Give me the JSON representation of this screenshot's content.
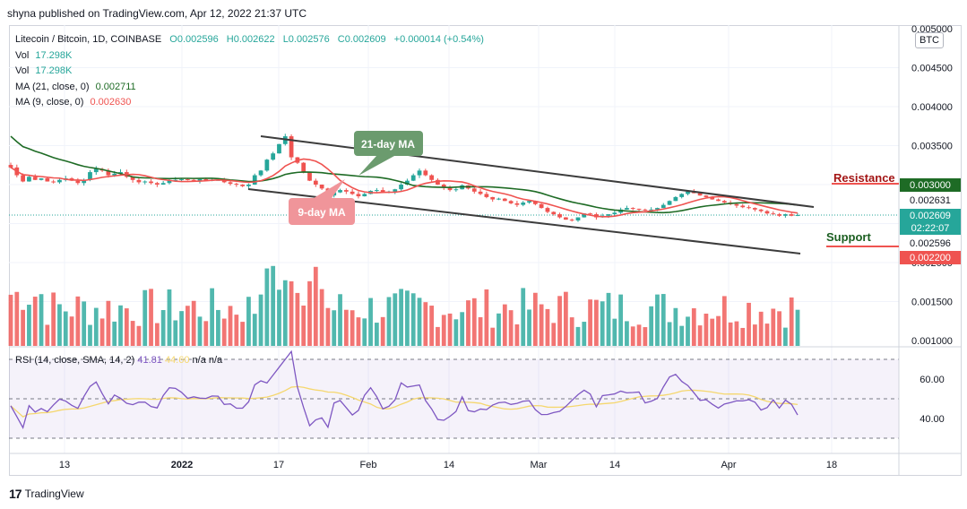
{
  "publisher": "shyna published on TradingView.com, Apr 12, 2022 21:37 UTC",
  "footer": {
    "logo": "17",
    "brand": "TradingView"
  },
  "legend": {
    "symbol": "Litecoin / Bitcoin, 1D, COINBASE",
    "open": "O0.002596",
    "high": "H0.002622",
    "low": "L0.002576",
    "close": "C0.002609",
    "change": "+0.000014 (+0.54%)",
    "vol1_label": "Vol",
    "vol1_value": "17.298K",
    "vol2_label": "Vol",
    "vol2_value": "17.298K",
    "ma21_label": "MA (21, close, 0)",
    "ma21_value": "0.002711",
    "ma9_label": "MA (9, close, 0)",
    "ma9_value": "0.002630"
  },
  "rsi_legend": {
    "label": "RSI (14, close, SMA, 14, 2)",
    "rsi": "41.81",
    "sma": "44.60",
    "rest": "n/a  n/a"
  },
  "currency": "BTC",
  "annotations": {
    "ma21": "21-day MA",
    "ma9": "9-day MA",
    "resistance": "Resistance",
    "support": "Support"
  },
  "colors": {
    "up": "#26a69a",
    "down": "#ef5350",
    "ma21": "#1e6b25",
    "ma9": "#ef5350",
    "rsi": "#7e57c2",
    "rsi_sma": "#f5d76e",
    "channel": "#3c3c3c"
  },
  "chart_data": {
    "type": "candlestick",
    "symbol": "LTC/BTC",
    "interval": "1D",
    "y_price_ticks": [
      "0.005000",
      "0.004500",
      "0.004000",
      "0.003500",
      "0.003000",
      "0.002500",
      "0.002000",
      "0.001500",
      "0.001000"
    ],
    "y_rsi_ticks": [
      "60.00",
      "40.00"
    ],
    "x_ticks": [
      "13",
      "2022",
      "17",
      "Feb",
      "14",
      "Mar",
      "14",
      "Apr",
      "18"
    ],
    "price_labels": [
      {
        "text": "0.003000",
        "color": "#1e6b25"
      },
      {
        "text": "0.002631",
        "color": "#ffffff"
      },
      {
        "text": "0.002609",
        "color": "#26a69a"
      },
      {
        "text": "02:22:07",
        "color": "#26a69a"
      },
      {
        "text": "0.002596",
        "color": "#ffffff"
      },
      {
        "text": "0.002200",
        "color": "#ef5350"
      }
    ],
    "resistance": 0.003,
    "support": 0.0022,
    "closes": [
      0.00322,
      0.00312,
      0.00304,
      0.0031,
      0.00306,
      0.00308,
      0.00304,
      0.00303,
      0.00306,
      0.00308,
      0.00305,
      0.00302,
      0.00306,
      0.00316,
      0.0032,
      0.00318,
      0.00312,
      0.00314,
      0.00316,
      0.0031,
      0.00306,
      0.00303,
      0.00304,
      0.00302,
      0.003,
      0.00302,
      0.00306,
      0.00306,
      0.00307,
      0.00306,
      0.00305,
      0.00307,
      0.00305,
      0.00306,
      0.00306,
      0.00303,
      0.00301,
      0.003,
      0.00298,
      0.003,
      0.00312,
      0.00318,
      0.00332,
      0.0034,
      0.00352,
      0.00362,
      0.00335,
      0.00328,
      0.00316,
      0.00305,
      0.003,
      0.00295,
      0.00286,
      0.0029,
      0.00293,
      0.00291,
      0.00288,
      0.00285,
      0.00288,
      0.00292,
      0.00293,
      0.0029,
      0.00291,
      0.00294,
      0.003,
      0.00305,
      0.00312,
      0.00318,
      0.00312,
      0.00306,
      0.003,
      0.00296,
      0.00293,
      0.00294,
      0.00299,
      0.00295,
      0.00291,
      0.00288,
      0.00284,
      0.00281,
      0.00282,
      0.00279,
      0.00276,
      0.00274,
      0.00277,
      0.00279,
      0.00275,
      0.0027,
      0.00265,
      0.00262,
      0.00258,
      0.00255,
      0.00254,
      0.00258,
      0.00263,
      0.00262,
      0.00258,
      0.0026,
      0.00262,
      0.00264,
      0.00268,
      0.0027,
      0.00269,
      0.00268,
      0.00267,
      0.00268,
      0.0027,
      0.00274,
      0.00279,
      0.00284,
      0.00288,
      0.00291,
      0.00289,
      0.00286,
      0.00284,
      0.00281,
      0.00279,
      0.00277,
      0.00275,
      0.00273,
      0.00271,
      0.0027,
      0.00268,
      0.00266,
      0.00263,
      0.00262,
      0.0026,
      0.00262,
      0.0026,
      0.00261
    ],
    "volume_range": [
      0,
      0.002
    ],
    "rsi_range": [
      25,
      75
    ]
  }
}
